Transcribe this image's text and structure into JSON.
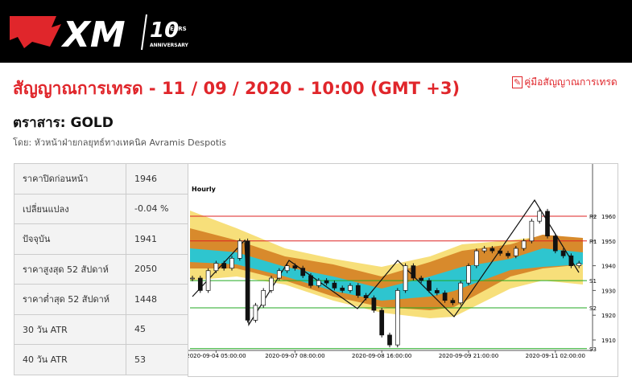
{
  "header": {
    "logo": {
      "brand": "XM",
      "years": "10",
      "years_word": "YEARS",
      "anniversary": "ANNIVERSARY"
    }
  },
  "page": {
    "title": "สัญญาณการเทรด - 11 / 09 / 2020 - 10:00 (GMT +3)",
    "guide_link": "คู่มือสัญญาณการเทรด",
    "instrument": "ตราสาร: GOLD",
    "byline": "โดย: หัวหน้าฝ่ายกลยุทธ์ทางเทคนิค Avramis Despotis"
  },
  "table": {
    "rows": [
      [
        "ราคาปิดก่อนหน้า",
        1946
      ],
      [
        "เปลี่ยนแปลง",
        "-0.04 %"
      ],
      [
        "ปัจจุบัน",
        1941
      ],
      [
        "ราคาสูงสุด 52 สัปดาห์",
        2050
      ],
      [
        "ราคาต่ำสุด 52 สัปดาห์",
        1448
      ],
      [
        "30 วัน ATR",
        45
      ],
      [
        "40 วัน ATR",
        53
      ]
    ]
  },
  "chart_data": {
    "type": "candlestick",
    "title": "Hourly",
    "categories": [
      null,
      null,
      null,
      "2020-09-04 05:00:00",
      null,
      null,
      null,
      null,
      null,
      null,
      null,
      null,
      null,
      "2020-09-07 08:00:00",
      null,
      null,
      null,
      null,
      null,
      null,
      null,
      null,
      null,
      null,
      "2020-09-08 16:00:00",
      null,
      null,
      null,
      null,
      null,
      null,
      null,
      null,
      null,
      null,
      "2020-09-09 21:00:00",
      null,
      null,
      null,
      null,
      null,
      null,
      null,
      null,
      null,
      null,
      "2020-09-11 02:00:00",
      null,
      null,
      null
    ],
    "values": [
      1935,
      1930,
      1938,
      1941,
      1939,
      1943,
      1950,
      1918,
      1924,
      1930,
      1935,
      1938,
      1940,
      1939,
      1936,
      1932,
      1934,
      1933,
      1931,
      1930,
      1932,
      1928,
      1927,
      1922,
      1912,
      1908,
      1930,
      1940,
      1935,
      1934,
      1930,
      1929,
      1926,
      1925,
      1933,
      1940,
      1946,
      1947,
      1946,
      1945,
      1944,
      1947,
      1950,
      1958,
      1962,
      1952,
      1946,
      1944,
      1940,
      1941
    ],
    "ylim": [
      1906,
      1979
    ],
    "yticks": [
      1910,
      1920,
      1930,
      1940,
      1950,
      1960
    ],
    "levels": [
      {
        "label": "R2",
        "value": 1960,
        "color": "#d22"
      },
      {
        "label": "R1",
        "value": 1950,
        "color": "#d22"
      },
      {
        "label": "S1",
        "value": 1934,
        "color": "#2a2"
      },
      {
        "label": "S2",
        "value": 1923,
        "color": "#2a2"
      },
      {
        "label": "S3",
        "value": 1906.5,
        "color": "#2a2"
      }
    ]
  }
}
